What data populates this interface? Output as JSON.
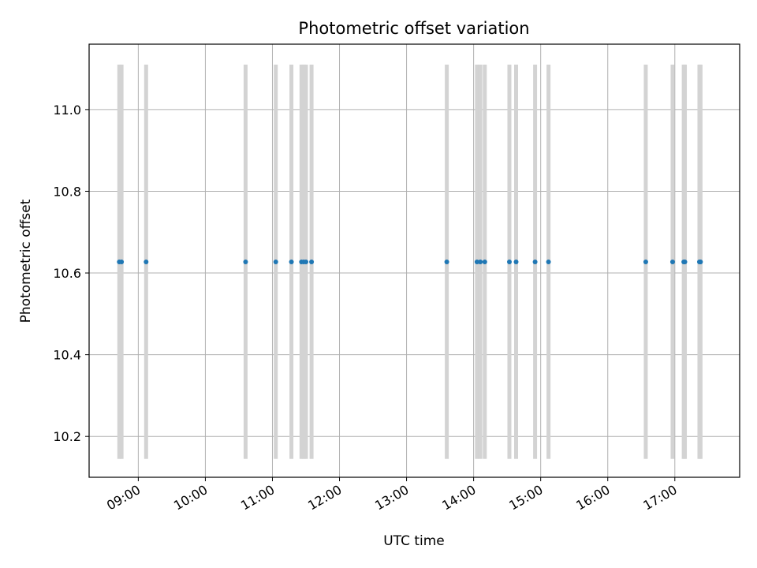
{
  "chart_data": {
    "type": "scatter",
    "title": "Photometric offset variation",
    "xlabel": "UTC time",
    "ylabel": "Photometric offset",
    "xlim": [
      "08:16",
      "17:58"
    ],
    "ylim": [
      10.1,
      11.16
    ],
    "grid": true,
    "x_ticks": [
      "09:00",
      "10:00",
      "11:00",
      "12:00",
      "13:00",
      "14:00",
      "15:00",
      "16:00",
      "17:00"
    ],
    "y_ticks": [
      10.2,
      10.4,
      10.6,
      10.8,
      11.0
    ],
    "point_color": "#1f77b4",
    "band_color": "#d3d3d3",
    "band_range": [
      10.145,
      11.11
    ],
    "points": [
      {
        "x": "08:43",
        "y": 10.627
      },
      {
        "x": "08:45",
        "y": 10.627
      },
      {
        "x": "09:07",
        "y": 10.627
      },
      {
        "x": "10:36",
        "y": 10.627
      },
      {
        "x": "11:03",
        "y": 10.627
      },
      {
        "x": "11:17",
        "y": 10.627
      },
      {
        "x": "11:26",
        "y": 10.627
      },
      {
        "x": "11:28",
        "y": 10.627
      },
      {
        "x": "11:30",
        "y": 10.627
      },
      {
        "x": "11:35",
        "y": 10.627
      },
      {
        "x": "13:36",
        "y": 10.627
      },
      {
        "x": "14:03",
        "y": 10.627
      },
      {
        "x": "14:06",
        "y": 10.627
      },
      {
        "x": "14:10",
        "y": 10.627
      },
      {
        "x": "14:32",
        "y": 10.627
      },
      {
        "x": "14:38",
        "y": 10.627
      },
      {
        "x": "14:55",
        "y": 10.627
      },
      {
        "x": "15:07",
        "y": 10.627
      },
      {
        "x": "16:34",
        "y": 10.627
      },
      {
        "x": "16:58",
        "y": 10.627
      },
      {
        "x": "17:08",
        "y": 10.627
      },
      {
        "x": "17:09",
        "y": 10.627
      },
      {
        "x": "17:22",
        "y": 10.627
      },
      {
        "x": "17:23",
        "y": 10.627
      }
    ]
  }
}
